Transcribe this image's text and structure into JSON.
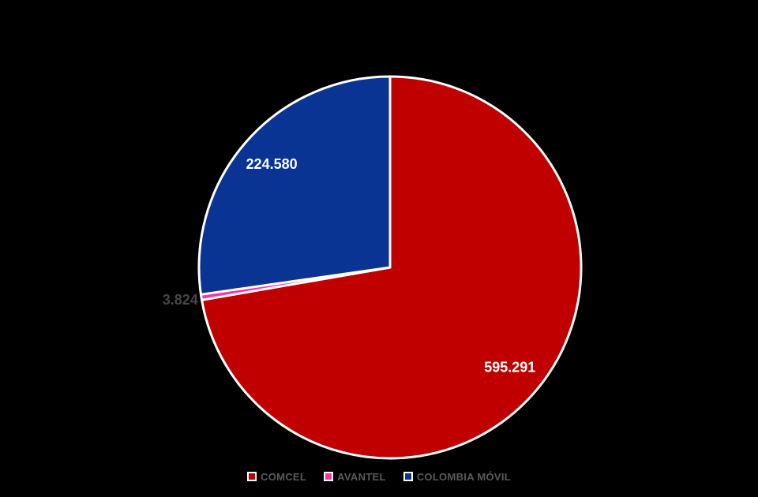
{
  "chart_data": {
    "type": "pie",
    "categories": [
      "COMCEL",
      "AVANTEL",
      "COLOMBIA MÓVIL"
    ],
    "values": [
      595291,
      3824,
      224580
    ],
    "value_labels": [
      "595.291",
      "3.824",
      "224.580"
    ],
    "colors": [
      "#C00000",
      "#FF33A0",
      "#0A3494"
    ],
    "label_colors": [
      "#FFFFFF",
      "#474747",
      "#FFFFFF"
    ],
    "slice_border_color": "#FFFFFF",
    "background": "#000000",
    "legend_position": "bottom",
    "legend_text_color": "#595959",
    "direction": "clockwise",
    "start_angle_deg": 0
  }
}
